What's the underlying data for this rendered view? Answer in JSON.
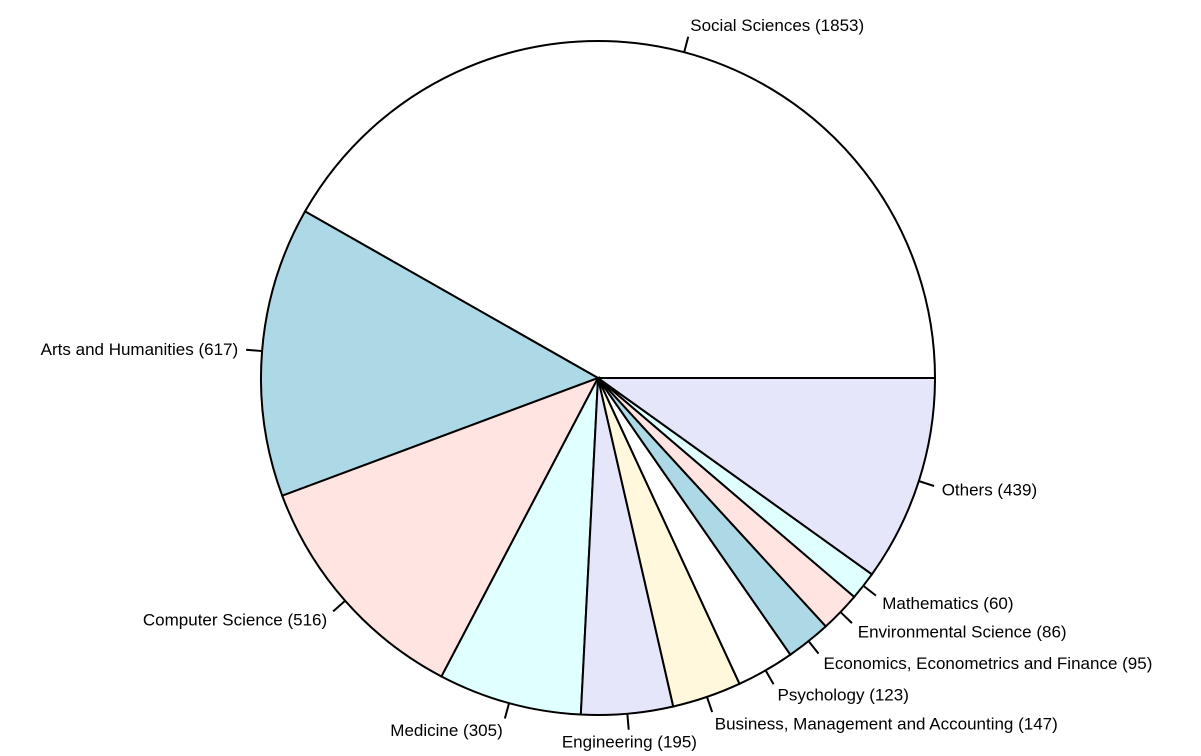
{
  "chart_data": {
    "type": "pie",
    "direction": "counterclockwise",
    "start_angle_deg": 0,
    "slices": [
      {
        "label": "Social Sciences (1853)",
        "category": "Social Sciences",
        "value": 1853,
        "color": "#FFFFFF"
      },
      {
        "label": "Arts and Humanities (617)",
        "category": "Arts and Humanities",
        "value": 617,
        "color": "#ADD8E6"
      },
      {
        "label": "Computer Science (516)",
        "category": "Computer Science",
        "value": 516,
        "color": "#FFE4E1"
      },
      {
        "label": "Medicine (305)",
        "category": "Medicine",
        "value": 305,
        "color": "#E0FFFF"
      },
      {
        "label": "Engineering (195)",
        "category": "Engineering",
        "value": 195,
        "color": "#E6E6FA"
      },
      {
        "label": "Business, Management and Accounting (147)",
        "category": "Business, Management and Accounting",
        "value": 147,
        "color": "#FFF8DC"
      },
      {
        "label": "Psychology (123)",
        "category": "Psychology",
        "value": 123,
        "color": "#FFFFFF"
      },
      {
        "label": "Economics, Econometrics and Finance (95)",
        "category": "Economics, Econometrics and Finance",
        "value": 95,
        "color": "#ADD8E6"
      },
      {
        "label": "Environmental Science (86)",
        "category": "Environmental Science",
        "value": 86,
        "color": "#FFE4E1"
      },
      {
        "label": "Mathematics (60)",
        "category": "Mathematics",
        "value": 60,
        "color": "#E0FFFF"
      },
      {
        "label": "Others (439)",
        "category": "Others",
        "value": 439,
        "color": "#E6E6FA"
      }
    ]
  }
}
